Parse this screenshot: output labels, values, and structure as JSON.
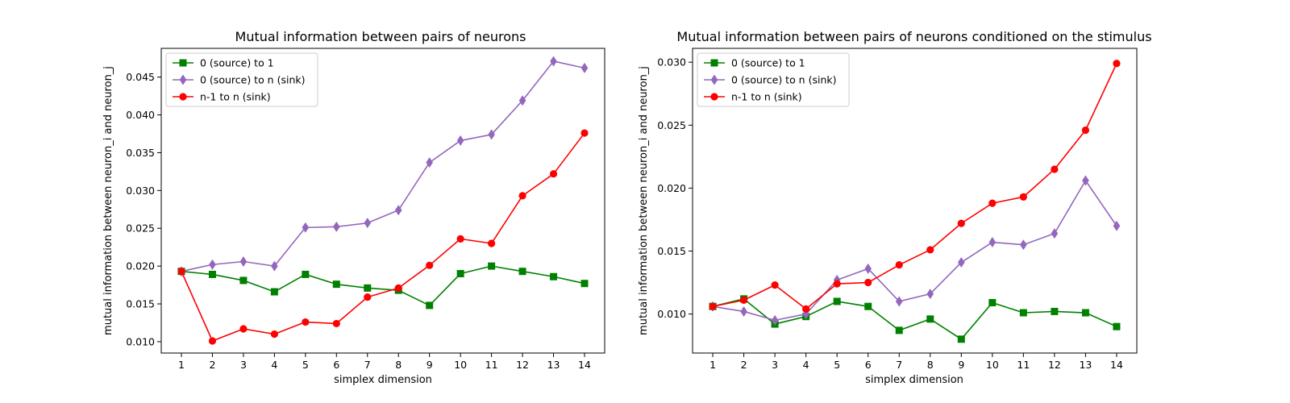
{
  "chart_data": [
    {
      "type": "line",
      "title": "Mutual information between pairs of neurons",
      "xlabel": "simplex dimension",
      "ylabel": "mutual information between neuron_i and neuron_j",
      "x": [
        1,
        2,
        3,
        4,
        5,
        6,
        7,
        8,
        9,
        10,
        11,
        12,
        13,
        14
      ],
      "xticks": [
        1,
        2,
        3,
        4,
        5,
        6,
        7,
        8,
        9,
        10,
        11,
        12,
        13,
        14
      ],
      "xlim": [
        0.35,
        14.65
      ],
      "ylim": [
        0.0085,
        0.0488
      ],
      "yticks": [
        0.01,
        0.015,
        0.02,
        0.025,
        0.03,
        0.035,
        0.04,
        0.045
      ],
      "grid": false,
      "legend_loc": "upper-left",
      "series": [
        {
          "name": "0 (source) to 1",
          "color": "#008000",
          "marker": "square",
          "values": [
            0.0193,
            0.0189,
            0.0181,
            0.0166,
            0.0189,
            0.0176,
            0.0171,
            0.0168,
            0.0148,
            0.019,
            0.02,
            0.0193,
            0.0186,
            0.0177
          ]
        },
        {
          "name": "0 (source) to n (sink)",
          "color": "#9467bd",
          "marker": "diamond",
          "values": [
            0.0193,
            0.0202,
            0.0206,
            0.02,
            0.0251,
            0.0252,
            0.0257,
            0.0274,
            0.0337,
            0.0366,
            0.0374,
            0.0419,
            0.0471,
            0.0462
          ]
        },
        {
          "name": "n-1 to n (sink)",
          "color": "#ff0000",
          "marker": "circle",
          "values": [
            0.0193,
            0.0101,
            0.0117,
            0.011,
            0.0126,
            0.0124,
            0.0159,
            0.0171,
            0.0201,
            0.0236,
            0.023,
            0.0293,
            0.0322,
            0.0376
          ]
        }
      ]
    },
    {
      "type": "line",
      "title": "Mutual information between pairs of neurons conditioned on the stimulus",
      "xlabel": "simplex dimension",
      "ylabel": "mutual information between neuron_i and neuron_j",
      "x": [
        1,
        2,
        3,
        4,
        5,
        6,
        7,
        8,
        9,
        10,
        11,
        12,
        13,
        14
      ],
      "xticks": [
        1,
        2,
        3,
        4,
        5,
        6,
        7,
        8,
        9,
        10,
        11,
        12,
        13,
        14
      ],
      "xlim": [
        0.35,
        14.65
      ],
      "ylim": [
        0.0069,
        0.0311
      ],
      "yticks": [
        0.01,
        0.015,
        0.02,
        0.025,
        0.03
      ],
      "grid": false,
      "legend_loc": "upper-left",
      "series": [
        {
          "name": "0 (source) to 1",
          "color": "#008000",
          "marker": "square",
          "values": [
            0.0106,
            0.0112,
            0.0092,
            0.0098,
            0.011,
            0.0106,
            0.0087,
            0.0096,
            0.008,
            0.0109,
            0.0101,
            0.0102,
            0.0101,
            0.009
          ]
        },
        {
          "name": "0 (source) to n (sink)",
          "color": "#9467bd",
          "marker": "diamond",
          "values": [
            0.0106,
            0.0102,
            0.0095,
            0.01,
            0.0127,
            0.0136,
            0.011,
            0.0116,
            0.0141,
            0.0157,
            0.0155,
            0.0164,
            0.0206,
            0.017
          ]
        },
        {
          "name": "n-1 to n (sink)",
          "color": "#ff0000",
          "marker": "circle",
          "values": [
            0.0106,
            0.0111,
            0.0123,
            0.0104,
            0.0124,
            0.0125,
            0.0139,
            0.0151,
            0.0172,
            0.0188,
            0.0193,
            0.0215,
            0.0246,
            0.0299
          ]
        }
      ]
    }
  ]
}
